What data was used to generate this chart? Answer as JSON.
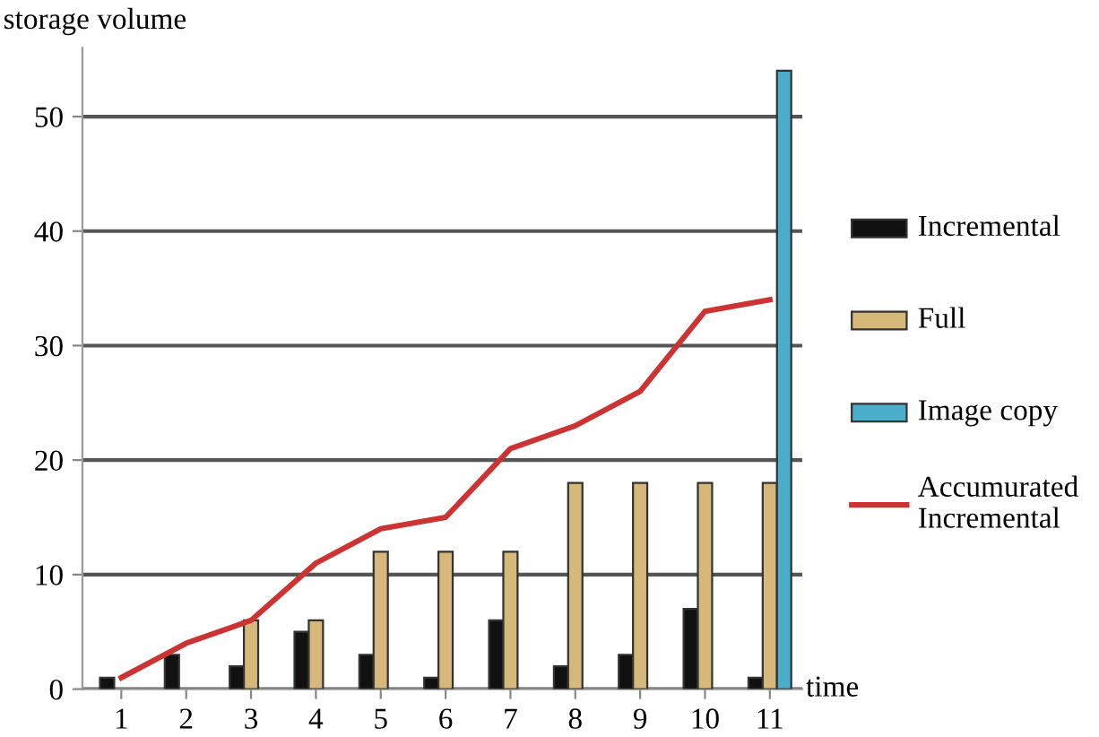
{
  "chart_data": {
    "type": "bar",
    "xlabel": "time",
    "ylabel": "storage volume",
    "categories": [
      "1",
      "2",
      "3",
      "4",
      "5",
      "6",
      "7",
      "8",
      "9",
      "10",
      "11"
    ],
    "series": [
      {
        "name": "Incremental",
        "color": "#111111",
        "values": [
          1,
          3,
          2,
          5,
          3,
          1,
          6,
          2,
          3,
          7,
          1
        ]
      },
      {
        "name": "Full",
        "color": "#d6b87a",
        "values": [
          null,
          null,
          6,
          6,
          12,
          12,
          12,
          18,
          18,
          18,
          18
        ]
      },
      {
        "name": "Image copy",
        "color": "#4aaecb",
        "values": [
          null,
          null,
          null,
          null,
          null,
          null,
          null,
          null,
          null,
          null,
          54
        ]
      },
      {
        "name": "Accumurated Incremental",
        "type": "line",
        "color": "#cc3333",
        "values": [
          1,
          4,
          6,
          11,
          14,
          15,
          21,
          23,
          26,
          33,
          34
        ]
      }
    ],
    "ylim": [
      0,
      56
    ],
    "yticks": [
      0,
      10,
      20,
      30,
      40,
      50
    ],
    "grid": "y",
    "legend": "right",
    "marker": "none",
    "line_style": "solid"
  }
}
